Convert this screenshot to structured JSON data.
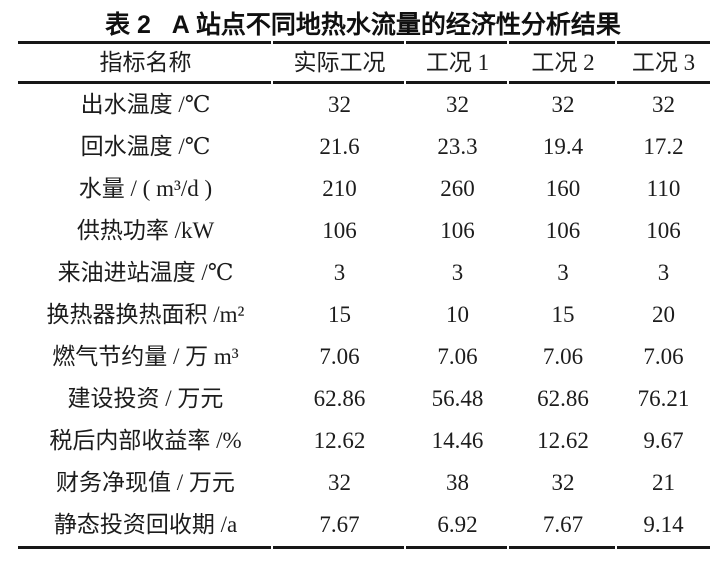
{
  "table": {
    "title": "表 2   A 站点不同地热水流量的经济性分析结果",
    "columns": [
      "指标名称",
      "实际工况",
      "工况 1",
      "工况 2",
      "工况 3"
    ],
    "rows": [
      {
        "label": "出水温度 /℃",
        "values": [
          "32",
          "32",
          "32",
          "32"
        ]
      },
      {
        "label": "回水温度 /℃",
        "values": [
          "21.6",
          "23.3",
          "19.4",
          "17.2"
        ]
      },
      {
        "label": "水量 / ( m³/d )",
        "values": [
          "210",
          "260",
          "160",
          "110"
        ]
      },
      {
        "label": "供热功率 /kW",
        "values": [
          "106",
          "106",
          "106",
          "106"
        ]
      },
      {
        "label": "来油进站温度 /℃",
        "values": [
          "3",
          "3",
          "3",
          "3"
        ]
      },
      {
        "label": "换热器换热面积 /m²",
        "values": [
          "15",
          "10",
          "15",
          "20"
        ]
      },
      {
        "label": "燃气节约量 / 万 m³",
        "values": [
          "7.06",
          "7.06",
          "7.06",
          "7.06"
        ]
      },
      {
        "label": "建设投资 / 万元",
        "values": [
          "62.86",
          "56.48",
          "62.86",
          "76.21"
        ]
      },
      {
        "label": "税后内部收益率 /%",
        "values": [
          "12.62",
          "14.46",
          "12.62",
          "9.67"
        ]
      },
      {
        "label": "财务净现值 / 万元",
        "values": [
          "32",
          "38",
          "32",
          "21"
        ]
      },
      {
        "label": "静态投资回收期 /a",
        "values": [
          "7.67",
          "6.92",
          "7.67",
          "9.14"
        ]
      }
    ],
    "text_color": "#1c1c1c",
    "rule_color": "#171717",
    "background_color": "#ffffff"
  }
}
